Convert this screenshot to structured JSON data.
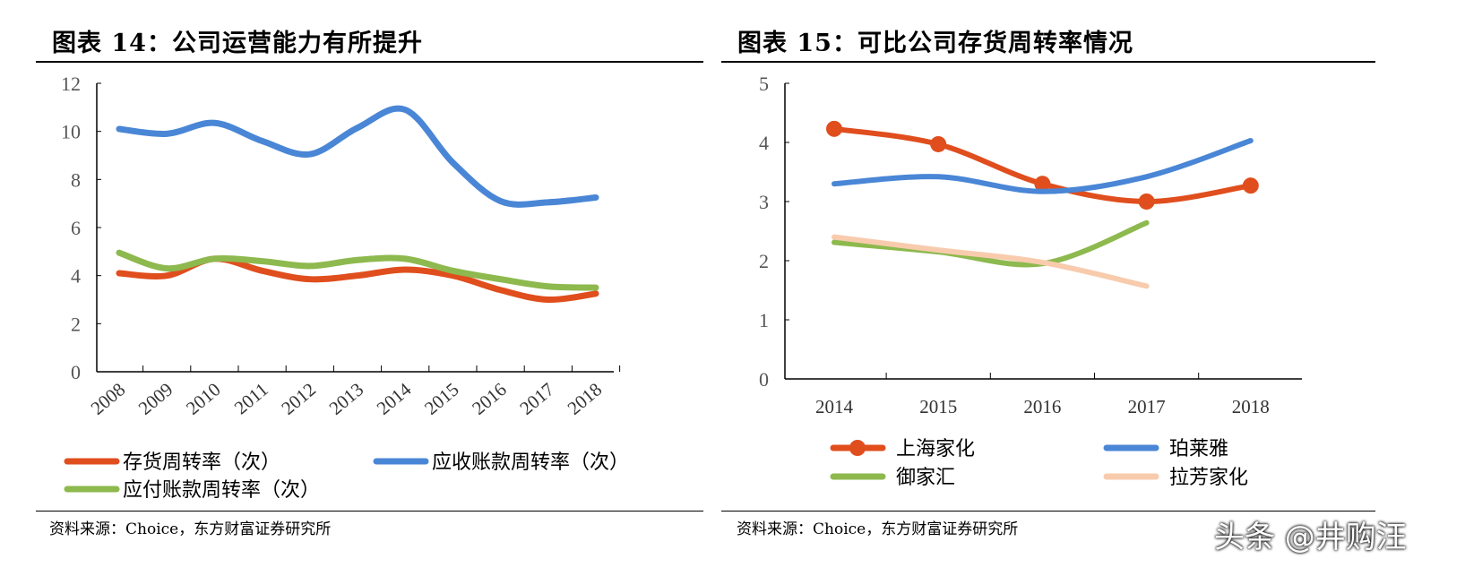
{
  "left": {
    "title": "图表 14：公司运营能力有所提升",
    "source": "资料来源：Choice，东方财富证券研究所"
  },
  "right": {
    "title": "图表 15：可比公司存货周转率情况",
    "source": "资料来源：Choice，东方财富证券研究所"
  },
  "watermark": "头条 @井购汪",
  "chart_data": [
    {
      "type": "line",
      "smooth": true,
      "categories": [
        "2008",
        "2009",
        "2010",
        "2011",
        "2012",
        "2013",
        "2014",
        "2015",
        "2016",
        "2017",
        "2018"
      ],
      "ylim": [
        0,
        12
      ],
      "yticks": [
        0,
        2,
        4,
        6,
        8,
        10,
        12
      ],
      "grid": false,
      "legend": "bottom",
      "series": [
        {
          "name": "存货周转率（次）",
          "color": "#E04E1E",
          "values": [
            4.1,
            4.0,
            4.7,
            4.2,
            3.85,
            4.0,
            4.25,
            4.0,
            3.4,
            3.0,
            3.25
          ]
        },
        {
          "name": "应收账款周转率（次）",
          "color": "#4A86D6",
          "values": [
            10.1,
            9.9,
            10.35,
            9.6,
            9.05,
            10.15,
            10.9,
            8.7,
            7.1,
            7.05,
            7.25
          ]
        },
        {
          "name": "应付账款周转率（次）",
          "color": "#8DB94E",
          "values": [
            4.95,
            4.3,
            4.7,
            4.6,
            4.4,
            4.65,
            4.7,
            4.2,
            3.85,
            3.55,
            3.5
          ]
        }
      ]
    },
    {
      "type": "line",
      "smooth": true,
      "categories": [
        "2014",
        "2015",
        "2016",
        "2017",
        "2018"
      ],
      "ylim": [
        0,
        5
      ],
      "yticks": [
        0,
        1,
        2,
        3,
        4,
        5
      ],
      "grid": false,
      "legend": "bottom",
      "series": [
        {
          "name": "上海家化",
          "color": "#E04E1E",
          "markers": true,
          "values": [
            4.23,
            3.97,
            3.3,
            3.0,
            3.27
          ]
        },
        {
          "name": "珀莱雅",
          "color": "#4A86D6",
          "values": [
            3.3,
            3.42,
            3.17,
            3.42,
            4.03
          ]
        },
        {
          "name": "御家汇",
          "color": "#8DB94E",
          "values": [
            2.31,
            2.15,
            1.95,
            2.64,
            null
          ]
        },
        {
          "name": "拉芳家化",
          "color": "#F8CBAD",
          "values": [
            2.4,
            2.18,
            1.97,
            1.57,
            null
          ]
        }
      ]
    }
  ]
}
